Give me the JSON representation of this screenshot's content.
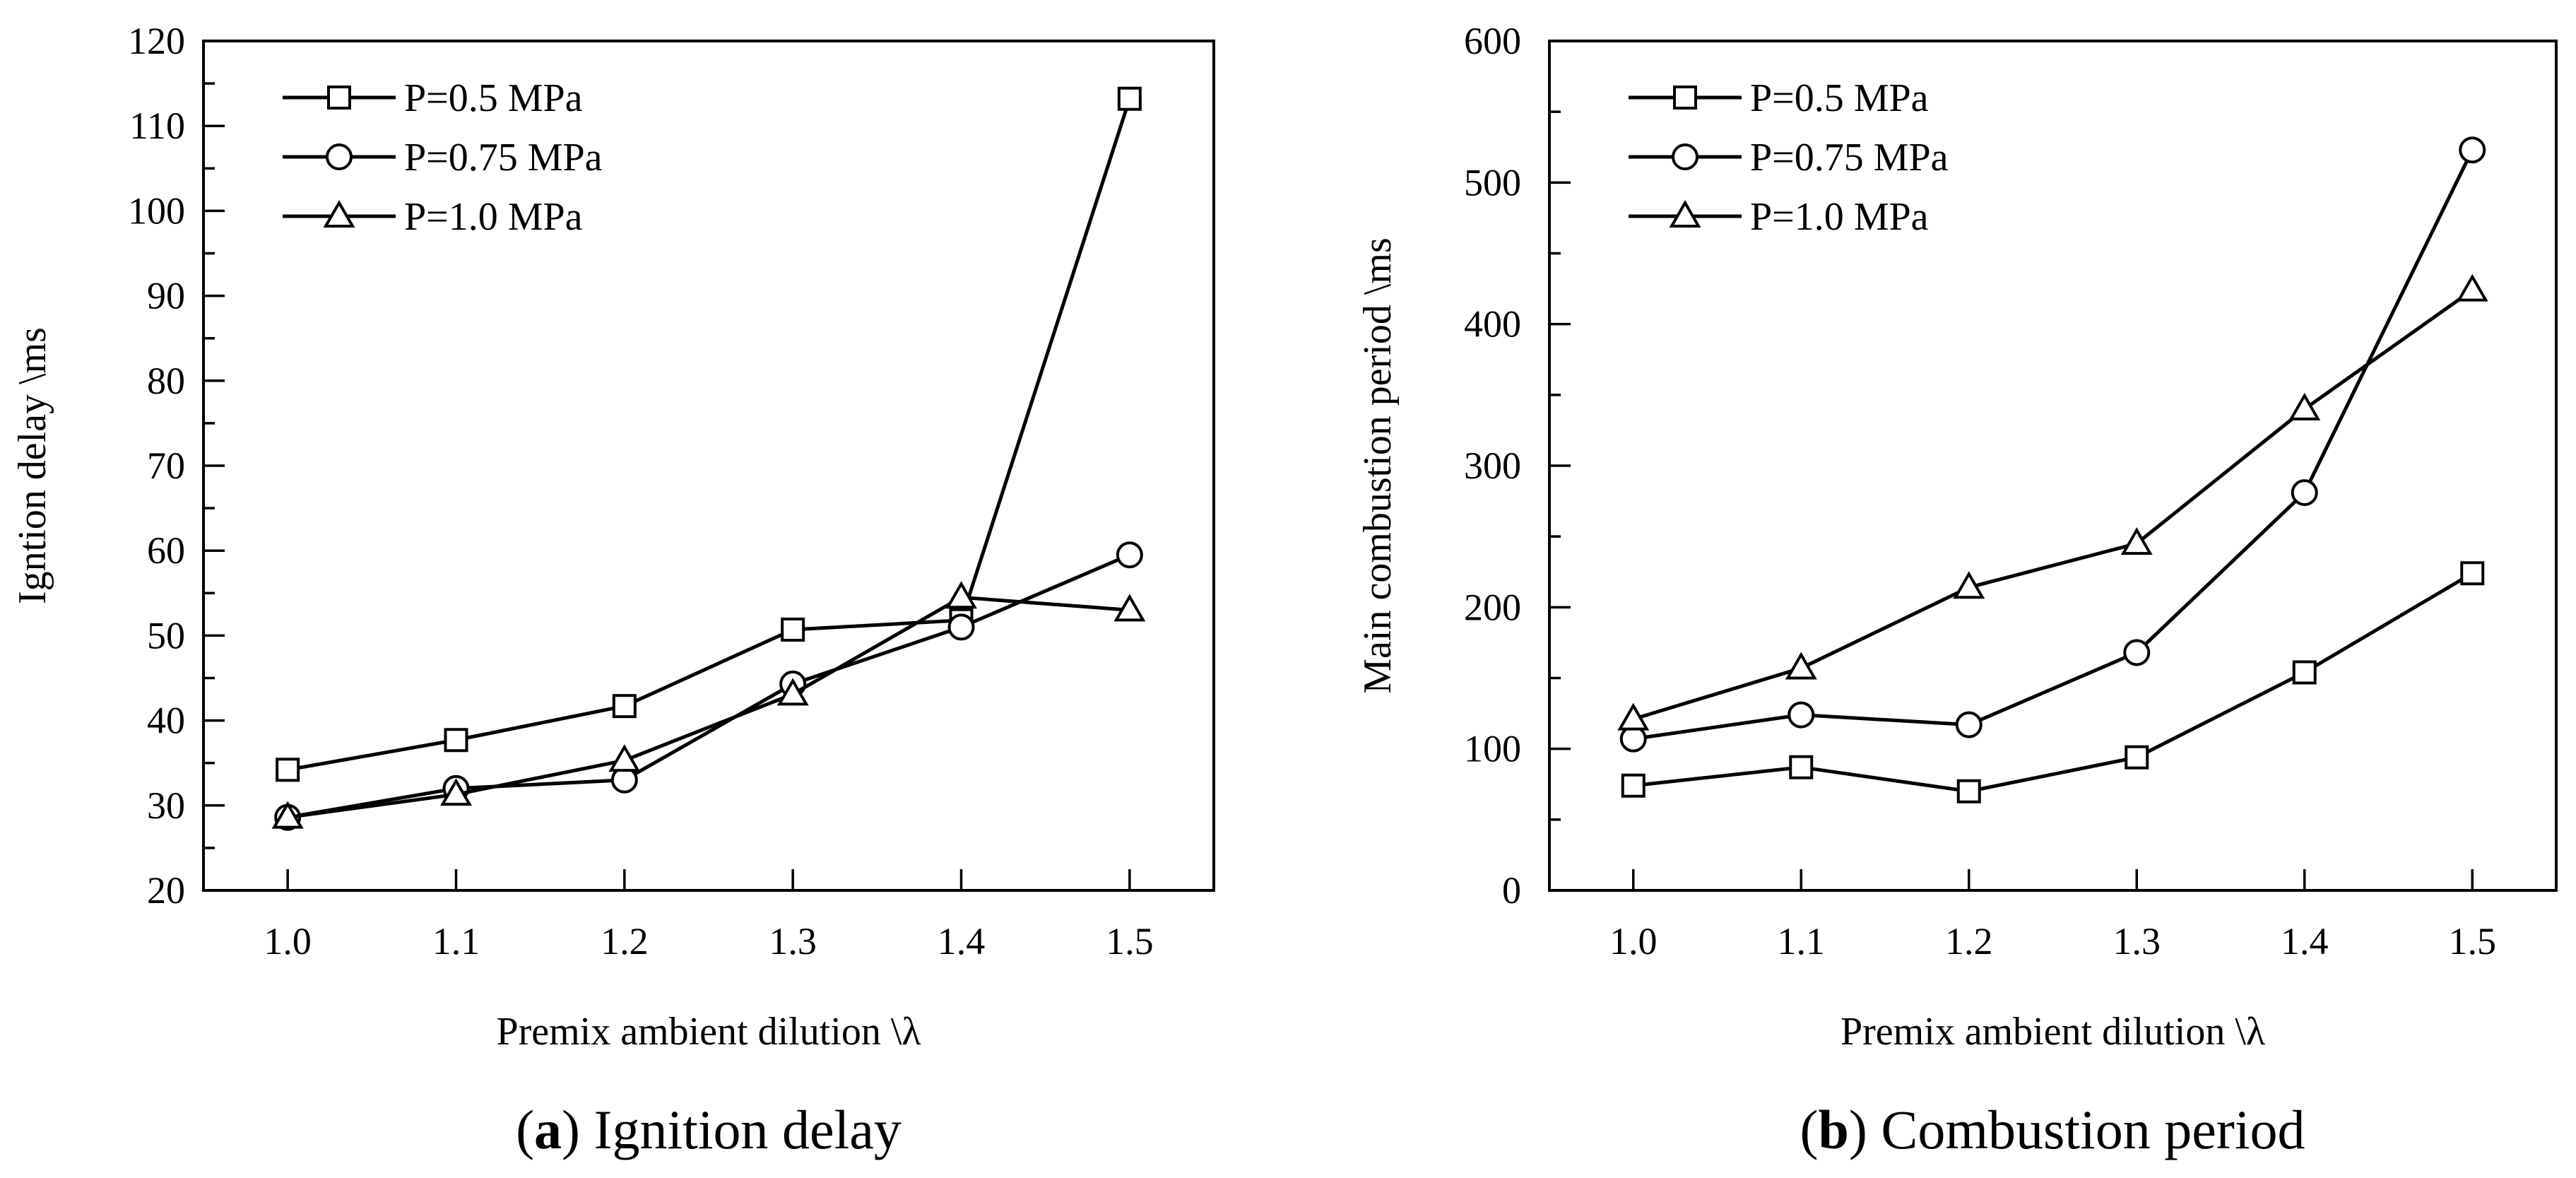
{
  "chart_data": [
    {
      "type": "line",
      "panel": "a",
      "caption_letter": "a",
      "caption_text": "Ignition delay",
      "xlabel": "Premix ambient dilution \\λ",
      "ylabel": "Igntion delay \\ms",
      "x": [
        1.0,
        1.1,
        1.2,
        1.3,
        1.4,
        1.5
      ],
      "xticklabels": [
        "1.0",
        "1.1",
        "1.2",
        "1.3",
        "1.4",
        "1.5"
      ],
      "xlim": [
        0.95,
        1.55
      ],
      "ylim": [
        20,
        120
      ],
      "yticks": [
        20,
        30,
        40,
        50,
        60,
        70,
        80,
        90,
        100,
        110,
        120
      ],
      "legend_position": "top-left",
      "series": [
        {
          "name": "P=0.5 MPa",
          "marker": "square",
          "values": [
            34.2,
            37.7,
            41.7,
            50.7,
            51.8,
            113.2
          ]
        },
        {
          "name": "P=0.75 MPa",
          "marker": "circle",
          "values": [
            28.6,
            32.0,
            33.0,
            44.3,
            51.0,
            59.5
          ]
        },
        {
          "name": "P=1.0 MPa",
          "marker": "triangle",
          "values": [
            28.6,
            31.3,
            35.3,
            43.1,
            54.5,
            53.0
          ]
        }
      ]
    },
    {
      "type": "line",
      "panel": "b",
      "caption_letter": "b",
      "caption_text": "Combustion period",
      "xlabel": "Premix ambient dilution \\λ",
      "ylabel": "Main combustion period \\ms",
      "x": [
        1.0,
        1.1,
        1.2,
        1.3,
        1.4,
        1.5
      ],
      "xticklabels": [
        "1.0",
        "1.1",
        "1.2",
        "1.3",
        "1.4",
        "1.5"
      ],
      "xlim": [
        0.95,
        1.55
      ],
      "ylim": [
        0,
        600
      ],
      "yticks": [
        0,
        100,
        200,
        300,
        400,
        500,
        600
      ],
      "legend_position": "top-left",
      "series": [
        {
          "name": "P=0.5 MPa",
          "marker": "square",
          "values": [
            74,
            87,
            70,
            94,
            154,
            224
          ]
        },
        {
          "name": "P=0.75 MPa",
          "marker": "circle",
          "values": [
            107,
            124,
            117,
            168,
            281,
            523
          ]
        },
        {
          "name": "P=1.0 MPa",
          "marker": "triangle",
          "values": [
            121,
            157,
            214,
            245,
            340,
            424
          ]
        }
      ]
    }
  ]
}
